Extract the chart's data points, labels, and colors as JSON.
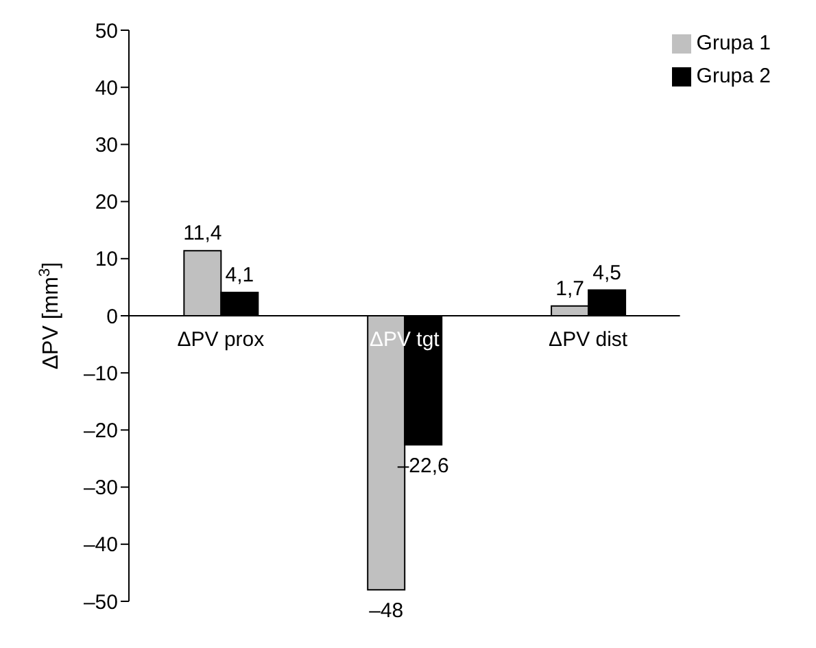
{
  "chart_data": {
    "type": "bar",
    "ylabel": "ΔPV [mm$^{3}$]",
    "categories": [
      "ΔPV prox",
      "ΔPV tgt",
      "ΔPV dist"
    ],
    "series": [
      {
        "name": "Grupa 1",
        "color": "#c0c0c0",
        "values": [
          11.4,
          -48,
          1.7
        ],
        "value_labels": [
          "11,4",
          "–48",
          "1,7"
        ]
      },
      {
        "name": "Grupa 2",
        "color": "#000000",
        "values": [
          4.1,
          -22.6,
          4.5
        ],
        "value_labels": [
          "4,1",
          "–22,6",
          "4,5"
        ]
      }
    ],
    "ylim": [
      -50,
      50
    ],
    "yticks": [
      {
        "value": -50,
        "label": "–50"
      },
      {
        "value": -40,
        "label": "–40"
      },
      {
        "value": -30,
        "label": "–30"
      },
      {
        "value": -20,
        "label": "–20"
      },
      {
        "value": -10,
        "label": "–10"
      },
      0,
      10,
      20,
      30,
      40,
      50
    ],
    "grid": false,
    "legend": "top right"
  }
}
